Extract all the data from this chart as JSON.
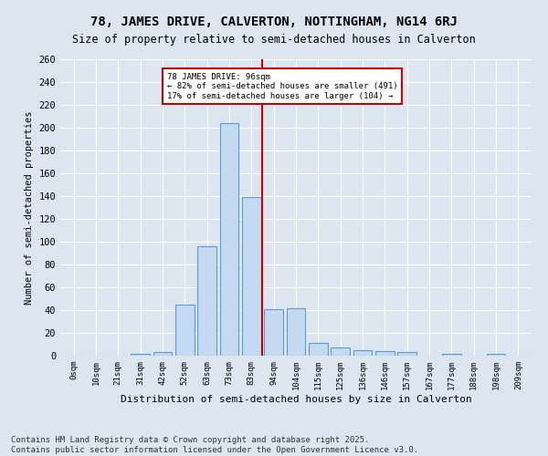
{
  "title": "78, JAMES DRIVE, CALVERTON, NOTTINGHAM, NG14 6RJ",
  "subtitle": "Size of property relative to semi-detached houses in Calverton",
  "xlabel": "Distribution of semi-detached houses by size in Calverton",
  "ylabel": "Number of semi-detached properties",
  "bar_labels": [
    "0sqm",
    "10sqm",
    "21sqm",
    "31sqm",
    "42sqm",
    "52sqm",
    "63sqm",
    "73sqm",
    "83sqm",
    "94sqm",
    "104sqm",
    "115sqm",
    "125sqm",
    "136sqm",
    "146sqm",
    "157sqm",
    "167sqm",
    "177sqm",
    "188sqm",
    "198sqm",
    "209sqm"
  ],
  "bar_values": [
    0,
    0,
    0,
    2,
    3,
    45,
    96,
    204,
    139,
    41,
    42,
    11,
    7,
    5,
    4,
    3,
    0,
    2,
    0,
    2,
    0
  ],
  "bar_color": "#c5d9f0",
  "bar_edge_color": "#5b9bd5",
  "vline_x": 8.5,
  "vline_color": "#cc0000",
  "annotation_title": "78 JAMES DRIVE: 96sqm",
  "annotation_line1": "← 82% of semi-detached houses are smaller (491)",
  "annotation_line2": "17% of semi-detached houses are larger (104) →",
  "annotation_box_color": "#ffffff",
  "annotation_box_edge": "#cc0000",
  "ylim": [
    0,
    260
  ],
  "yticks": [
    0,
    20,
    40,
    60,
    80,
    100,
    120,
    140,
    160,
    180,
    200,
    220,
    240,
    260
  ],
  "footer_line1": "Contains HM Land Registry data © Crown copyright and database right 2025.",
  "footer_line2": "Contains public sector information licensed under the Open Government Licence v3.0.",
  "bg_color": "#dce6f1",
  "plot_bg_color": "#dce6f1",
  "grid_color": "#ffffff",
  "title_fontsize": 10,
  "subtitle_fontsize": 8.5,
  "footer_fontsize": 6.5,
  "font_family": "monospace"
}
